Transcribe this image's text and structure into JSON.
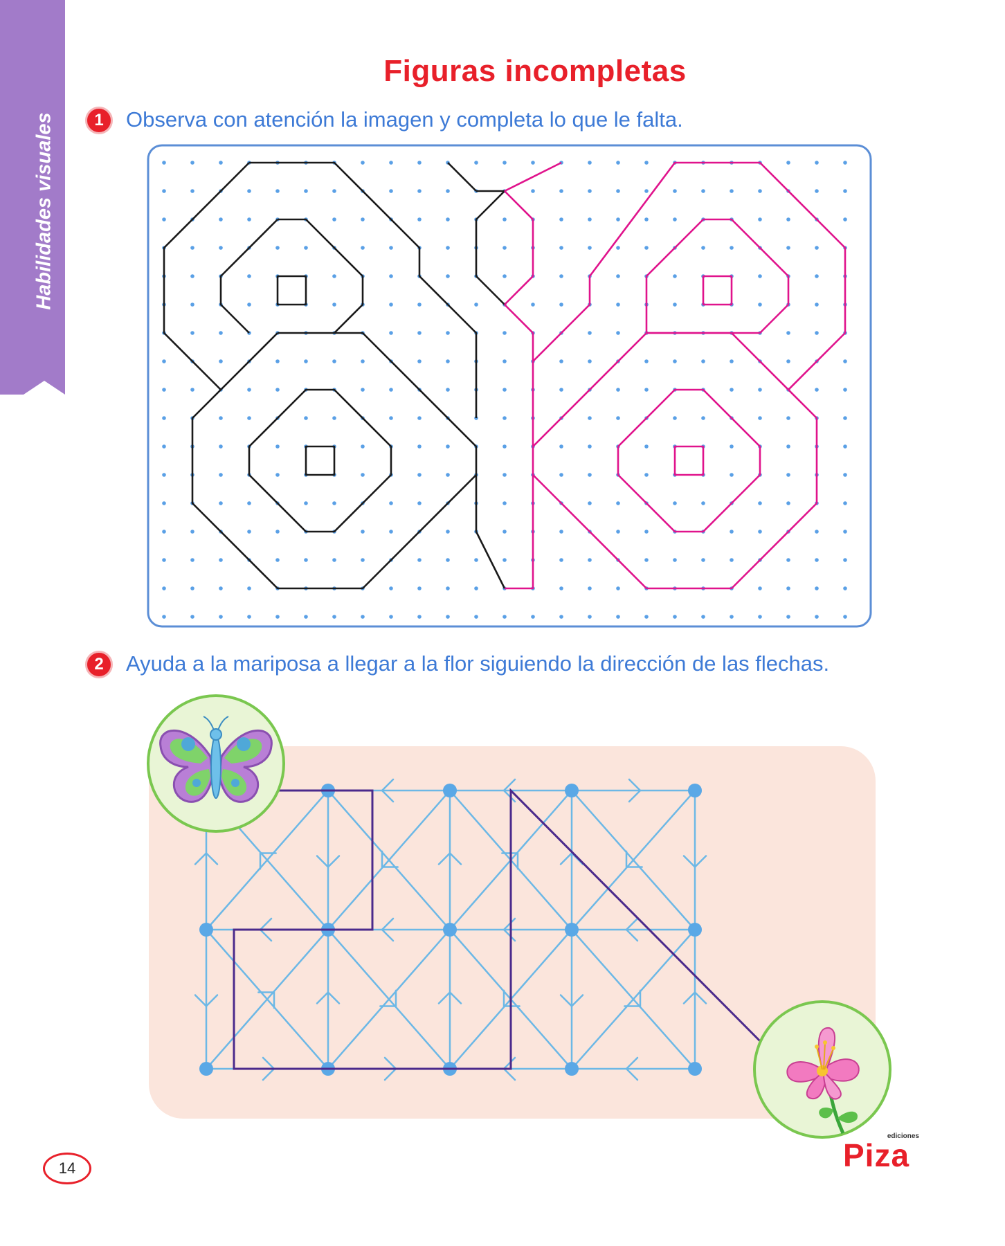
{
  "side_tab": {
    "label": "Habilidades visuales",
    "color": "#a27bc9"
  },
  "title": "Figuras incompletas",
  "exercise1": {
    "number": "1",
    "instruction": "Observa con atención la imagen y completa lo que le falta."
  },
  "exercise2": {
    "number": "2",
    "instruction": "Ayuda a la mariposa a llegar a la flor siguiendo la dirección de las flechas."
  },
  "footer": {
    "page_number": "14",
    "brand_small": "ediciones",
    "brand_name": "Piza"
  },
  "colors": {
    "accent_red": "#e8202a",
    "instruction_blue": "#3d7ad6",
    "dot_blue": "#5aa0e6",
    "grid_border": "#5b8ed6",
    "pink_outline": "#e0138c",
    "black_outline": "#1a1a1a",
    "maze_blue": "#6cb8e6",
    "maze_path": "#4b2a8c",
    "maze_background": "#fbe5dc",
    "circle_fill": "#e9f5d6",
    "circle_border": "#7ac74f"
  },
  "icons": [
    "butterfly-icon",
    "flower-icon"
  ]
}
